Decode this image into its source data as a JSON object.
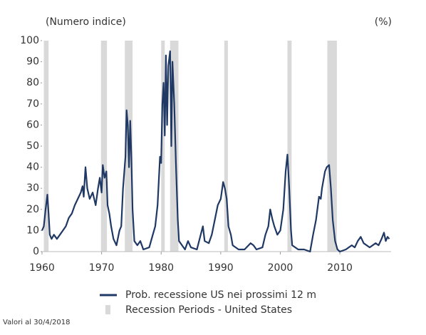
{
  "chart_data": {
    "type": "line",
    "y_axis_label": "(Numero indice)",
    "y2_axis_label": "(%)",
    "note": "Valori al 30/4/2018",
    "xlim": [
      1960,
      2018.6
    ],
    "xticks": [
      1960,
      1970,
      1980,
      1990,
      2000,
      2010
    ],
    "ylim": [
      0,
      100
    ],
    "yticks": [
      0,
      10,
      20,
      30,
      40,
      50,
      60,
      70,
      80,
      90,
      100
    ],
    "recessions": {
      "name": "Recession Periods - United States",
      "color": "#d9d9d9",
      "periods": [
        [
          1960.3,
          1961.1
        ],
        [
          1969.9,
          1970.9
        ],
        [
          1973.9,
          1975.2
        ],
        [
          1980.0,
          1980.6
        ],
        [
          1981.5,
          1982.9
        ],
        [
          1990.6,
          1991.2
        ],
        [
          2001.2,
          2001.9
        ],
        [
          2007.9,
          2009.5
        ]
      ]
    },
    "x": [
      1960.0,
      1960.3,
      1960.6,
      1960.9,
      1961.1,
      1961.3,
      1961.6,
      1962,
      1962.5,
      1963,
      1963.5,
      1964,
      1964.5,
      1965,
      1965.5,
      1966,
      1966.5,
      1966.8,
      1967,
      1967.3,
      1967.6,
      1968,
      1968.5,
      1969,
      1969.4,
      1969.7,
      1970,
      1970.2,
      1970.5,
      1970.8,
      1971,
      1971.3,
      1971.6,
      1972,
      1972.5,
      1973,
      1973.3,
      1973.6,
      1974,
      1974.2,
      1974.4,
      1974.6,
      1974.8,
      1975,
      1975.2,
      1975.5,
      1976,
      1976.5,
      1977,
      1978,
      1978.6,
      1979,
      1979.4,
      1979.8,
      1980.0,
      1980.2,
      1980.4,
      1980.6,
      1980.8,
      1981.0,
      1981.2,
      1981.5,
      1981.7,
      1981.9,
      1982.2,
      1982.5,
      1982.8,
      1983,
      1983.5,
      1984,
      1984.5,
      1985,
      1986,
      1987,
      1987.3,
      1988,
      1988.5,
      1989,
      1989.5,
      1990,
      1990.4,
      1990.7,
      1991,
      1991.3,
      1991.7,
      1992,
      1993,
      1994,
      1995,
      1995.5,
      1996,
      1997,
      1997.5,
      1998,
      1998.3,
      1998.7,
      1999,
      1999.5,
      2000,
      2000.5,
      2000.9,
      2001.2,
      2001.5,
      2001.8,
      2002,
      2003,
      2004,
      2005,
      2005.5,
      2006,
      2006.5,
      2006.8,
      2007,
      2007.5,
      2007.8,
      2008.2,
      2008.5,
      2008.8,
      2009.2,
      2009.6,
      2010,
      2011,
      2012,
      2012.5,
      2013,
      2013.5,
      2014,
      2015,
      2016,
      2016.5,
      2017,
      2017.4,
      2017.7,
      2018,
      2018.3
    ],
    "series": [
      {
        "name": "Prob. recessione US nei prossimi 12 m",
        "color": "#1f3864",
        "values": [
          10,
          12,
          20,
          27,
          18,
          8,
          6,
          8,
          6,
          8,
          10,
          12,
          16,
          18,
          22,
          25,
          28,
          31,
          26,
          40,
          30,
          25,
          28,
          22,
          30,
          35,
          28,
          41,
          35,
          38,
          22,
          18,
          12,
          6,
          3,
          10,
          12,
          30,
          45,
          67,
          60,
          40,
          62,
          45,
          20,
          5,
          3,
          5,
          1,
          2,
          8,
          12,
          22,
          45,
          42,
          70,
          80,
          55,
          93,
          60,
          88,
          95,
          50,
          90,
          70,
          40,
          15,
          5,
          3,
          1,
          5,
          2,
          1,
          12,
          5,
          4,
          8,
          15,
          22,
          25,
          33,
          30,
          25,
          12,
          8,
          3,
          1,
          1,
          4,
          3,
          1,
          2,
          8,
          12,
          20,
          15,
          12,
          8,
          10,
          20,
          38,
          46,
          30,
          10,
          3,
          1,
          1,
          0,
          8,
          15,
          26,
          25,
          30,
          38,
          40,
          41,
          30,
          15,
          5,
          1,
          0,
          1,
          3,
          2,
          5,
          7,
          4,
          2,
          4,
          3,
          6,
          9,
          5,
          7,
          6
        ]
      }
    ]
  }
}
